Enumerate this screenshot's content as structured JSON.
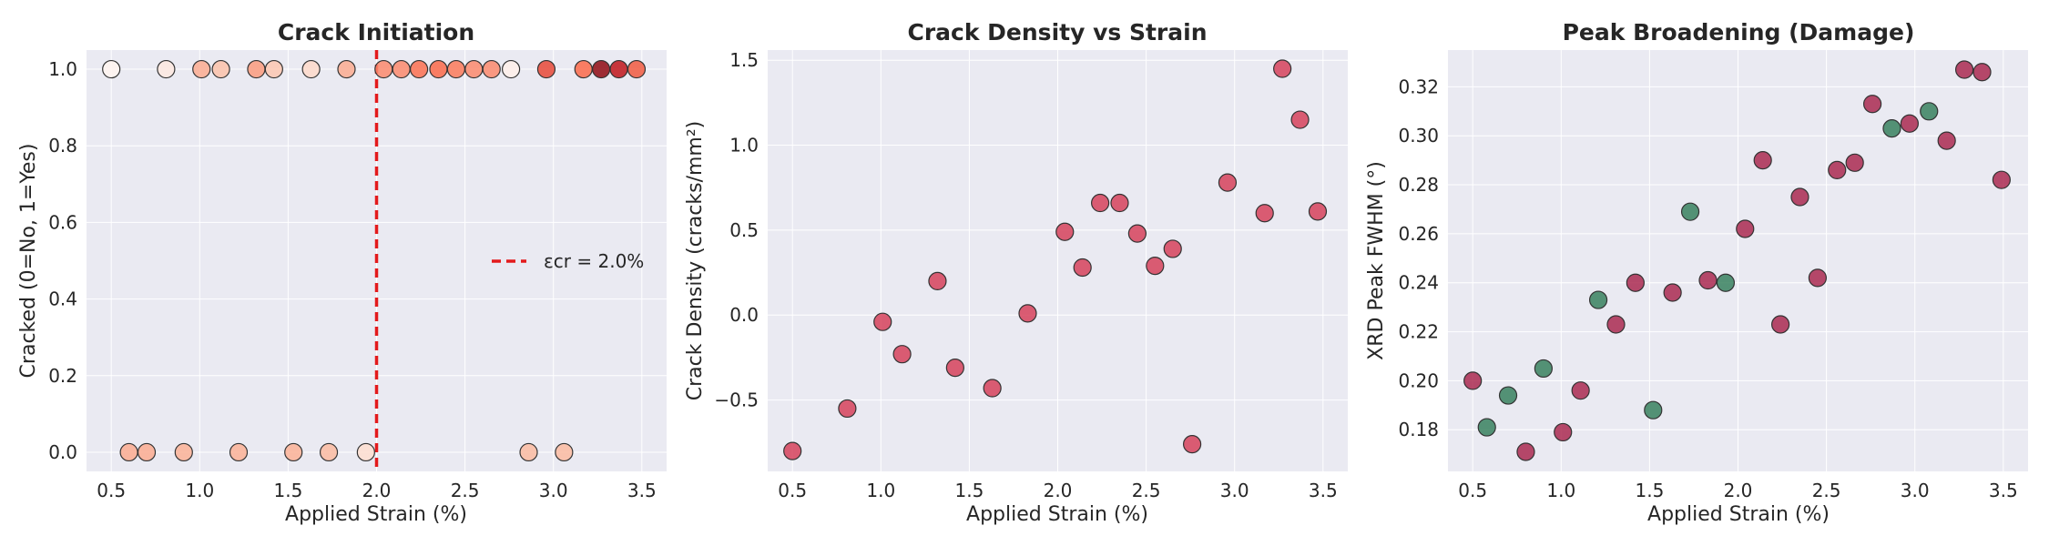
{
  "colors": {
    "plot_bg": "#EAEAF2",
    "grid": "#FFFFFF",
    "threshold_line": "#E31A1C",
    "marker_edge": "#333333",
    "density_marker": "#D6425C",
    "broadening_damage": "#A61E46",
    "broadening_alt": "#2D7A55"
  },
  "chart_data": [
    {
      "type": "scatter",
      "title": "Crack Initiation",
      "xlabel": "Applied Strain (%)",
      "ylabel": "Cracked (0=No, 1=Yes)",
      "xlim": [
        0.36,
        3.64
      ],
      "ylim": [
        -0.05,
        1.05
      ],
      "xticks": [
        0.5,
        1.0,
        1.5,
        2.0,
        2.5,
        3.0,
        3.5
      ],
      "yticks": [
        0.0,
        0.2,
        0.4,
        0.6,
        0.8,
        1.0
      ],
      "x_tick_labels": [
        "0.5",
        "1.0",
        "1.5",
        "2.0",
        "2.5",
        "3.0",
        "3.5"
      ],
      "y_tick_labels": [
        "0.0",
        "0.2",
        "0.4",
        "0.6",
        "0.8",
        "1.0"
      ],
      "grid": true,
      "threshold": {
        "x": 2.0,
        "label": "εcr = 2.0%"
      },
      "legend_position": "center-right",
      "color_scale": [
        "#FFF5F0",
        "#FCBBA1",
        "#FB6A4A",
        "#CB181D",
        "#67000D"
      ],
      "points": [
        {
          "x": 0.5,
          "y": 1,
          "c": 0.0
        },
        {
          "x": 0.6,
          "y": 0,
          "c": 0.3
        },
        {
          "x": 0.7,
          "y": 0,
          "c": 0.3
        },
        {
          "x": 0.81,
          "y": 1,
          "c": 0.05
        },
        {
          "x": 0.91,
          "y": 0,
          "c": 0.28
        },
        {
          "x": 1.01,
          "y": 1,
          "c": 0.3
        },
        {
          "x": 1.12,
          "y": 1,
          "c": 0.22
        },
        {
          "x": 1.22,
          "y": 0,
          "c": 0.28
        },
        {
          "x": 1.32,
          "y": 1,
          "c": 0.35
        },
        {
          "x": 1.42,
          "y": 1,
          "c": 0.2
        },
        {
          "x": 1.53,
          "y": 0,
          "c": 0.28
        },
        {
          "x": 1.63,
          "y": 1,
          "c": 0.12
        },
        {
          "x": 1.73,
          "y": 0,
          "c": 0.25
        },
        {
          "x": 1.83,
          "y": 1,
          "c": 0.3
        },
        {
          "x": 1.94,
          "y": 0,
          "c": 0.1
        },
        {
          "x": 2.04,
          "y": 1,
          "c": 0.4
        },
        {
          "x": 2.14,
          "y": 1,
          "c": 0.4
        },
        {
          "x": 2.24,
          "y": 1,
          "c": 0.48
        },
        {
          "x": 2.35,
          "y": 1,
          "c": 0.5
        },
        {
          "x": 2.45,
          "y": 1,
          "c": 0.45
        },
        {
          "x": 2.55,
          "y": 1,
          "c": 0.4
        },
        {
          "x": 2.65,
          "y": 1,
          "c": 0.4
        },
        {
          "x": 2.76,
          "y": 1,
          "c": 0.02
        },
        {
          "x": 2.86,
          "y": 0,
          "c": 0.25
        },
        {
          "x": 2.96,
          "y": 1,
          "c": 0.6
        },
        {
          "x": 3.06,
          "y": 0,
          "c": 0.25
        },
        {
          "x": 3.17,
          "y": 1,
          "c": 0.5
        },
        {
          "x": 3.27,
          "y": 1,
          "c": 0.9
        },
        {
          "x": 3.37,
          "y": 1,
          "c": 0.78
        },
        {
          "x": 3.47,
          "y": 1,
          "c": 0.55
        }
      ]
    },
    {
      "type": "scatter",
      "title": "Crack Density vs Strain",
      "xlabel": "Applied Strain (%)",
      "ylabel": "Crack Density (cracks/mm²)",
      "xlim": [
        0.36,
        3.64
      ],
      "ylim": [
        -0.92,
        1.56
      ],
      "xticks": [
        0.5,
        1.0,
        1.5,
        2.0,
        2.5,
        3.0,
        3.5
      ],
      "yticks": [
        -0.5,
        0.0,
        0.5,
        1.0,
        1.5
      ],
      "x_tick_labels": [
        "0.5",
        "1.0",
        "1.5",
        "2.0",
        "2.5",
        "3.0",
        "3.5"
      ],
      "y_tick_labels": [
        "−0.5",
        "0.0",
        "0.5",
        "1.0",
        "1.5"
      ],
      "grid": true,
      "points": [
        {
          "x": 0.5,
          "y": -0.8
        },
        {
          "x": 0.81,
          "y": -0.55
        },
        {
          "x": 1.01,
          "y": -0.04
        },
        {
          "x": 1.12,
          "y": -0.23
        },
        {
          "x": 1.32,
          "y": 0.2
        },
        {
          "x": 1.42,
          "y": -0.31
        },
        {
          "x": 1.63,
          "y": -0.43
        },
        {
          "x": 1.83,
          "y": 0.01
        },
        {
          "x": 2.04,
          "y": 0.49
        },
        {
          "x": 2.14,
          "y": 0.28
        },
        {
          "x": 2.24,
          "y": 0.66
        },
        {
          "x": 2.35,
          "y": 0.66
        },
        {
          "x": 2.45,
          "y": 0.48
        },
        {
          "x": 2.55,
          "y": 0.29
        },
        {
          "x": 2.65,
          "y": 0.39
        },
        {
          "x": 2.76,
          "y": -0.76
        },
        {
          "x": 2.96,
          "y": 0.78
        },
        {
          "x": 3.17,
          "y": 0.6
        },
        {
          "x": 3.27,
          "y": 1.45
        },
        {
          "x": 3.37,
          "y": 1.15
        },
        {
          "x": 3.47,
          "y": 0.61
        }
      ]
    },
    {
      "type": "scatter",
      "title": "Peak Broadening (Damage)",
      "xlabel": "Applied Strain (%)",
      "ylabel": "XRD Peak FWHM (°)",
      "xlim": [
        0.36,
        3.64
      ],
      "ylim": [
        0.163,
        0.335
      ],
      "xticks": [
        0.5,
        1.0,
        1.5,
        2.0,
        2.5,
        3.0,
        3.5
      ],
      "yticks": [
        0.18,
        0.2,
        0.22,
        0.24,
        0.26,
        0.28,
        0.3,
        0.32
      ],
      "x_tick_labels": [
        "0.5",
        "1.0",
        "1.5",
        "2.0",
        "2.5",
        "3.0",
        "3.5"
      ],
      "y_tick_labels": [
        "0.18",
        "0.20",
        "0.22",
        "0.24",
        "0.26",
        "0.28",
        "0.30",
        "0.32"
      ],
      "grid": true,
      "points": [
        {
          "x": 0.5,
          "y": 0.2,
          "g": 1
        },
        {
          "x": 0.58,
          "y": 0.181,
          "g": 0
        },
        {
          "x": 0.7,
          "y": 0.194,
          "g": 0
        },
        {
          "x": 0.8,
          "y": 0.171,
          "g": 1
        },
        {
          "x": 0.9,
          "y": 0.205,
          "g": 0
        },
        {
          "x": 1.01,
          "y": 0.179,
          "g": 1
        },
        {
          "x": 1.11,
          "y": 0.196,
          "g": 1
        },
        {
          "x": 1.21,
          "y": 0.233,
          "g": 0
        },
        {
          "x": 1.31,
          "y": 0.223,
          "g": 1
        },
        {
          "x": 1.42,
          "y": 0.24,
          "g": 1
        },
        {
          "x": 1.52,
          "y": 0.188,
          "g": 0
        },
        {
          "x": 1.63,
          "y": 0.236,
          "g": 1
        },
        {
          "x": 1.73,
          "y": 0.269,
          "g": 0
        },
        {
          "x": 1.83,
          "y": 0.241,
          "g": 1
        },
        {
          "x": 1.93,
          "y": 0.24,
          "g": 0
        },
        {
          "x": 2.04,
          "y": 0.262,
          "g": 1
        },
        {
          "x": 2.14,
          "y": 0.29,
          "g": 1
        },
        {
          "x": 2.24,
          "y": 0.223,
          "g": 1
        },
        {
          "x": 2.35,
          "y": 0.275,
          "g": 1
        },
        {
          "x": 2.45,
          "y": 0.242,
          "g": 1
        },
        {
          "x": 2.56,
          "y": 0.286,
          "g": 1
        },
        {
          "x": 2.66,
          "y": 0.289,
          "g": 1
        },
        {
          "x": 2.76,
          "y": 0.313,
          "g": 1
        },
        {
          "x": 2.87,
          "y": 0.303,
          "g": 0
        },
        {
          "x": 2.97,
          "y": 0.305,
          "g": 1
        },
        {
          "x": 3.08,
          "y": 0.31,
          "g": 0
        },
        {
          "x": 3.18,
          "y": 0.298,
          "g": 1
        },
        {
          "x": 3.28,
          "y": 0.327,
          "g": 1
        },
        {
          "x": 3.38,
          "y": 0.326,
          "g": 1
        },
        {
          "x": 3.49,
          "y": 0.282,
          "g": 1
        }
      ]
    }
  ]
}
